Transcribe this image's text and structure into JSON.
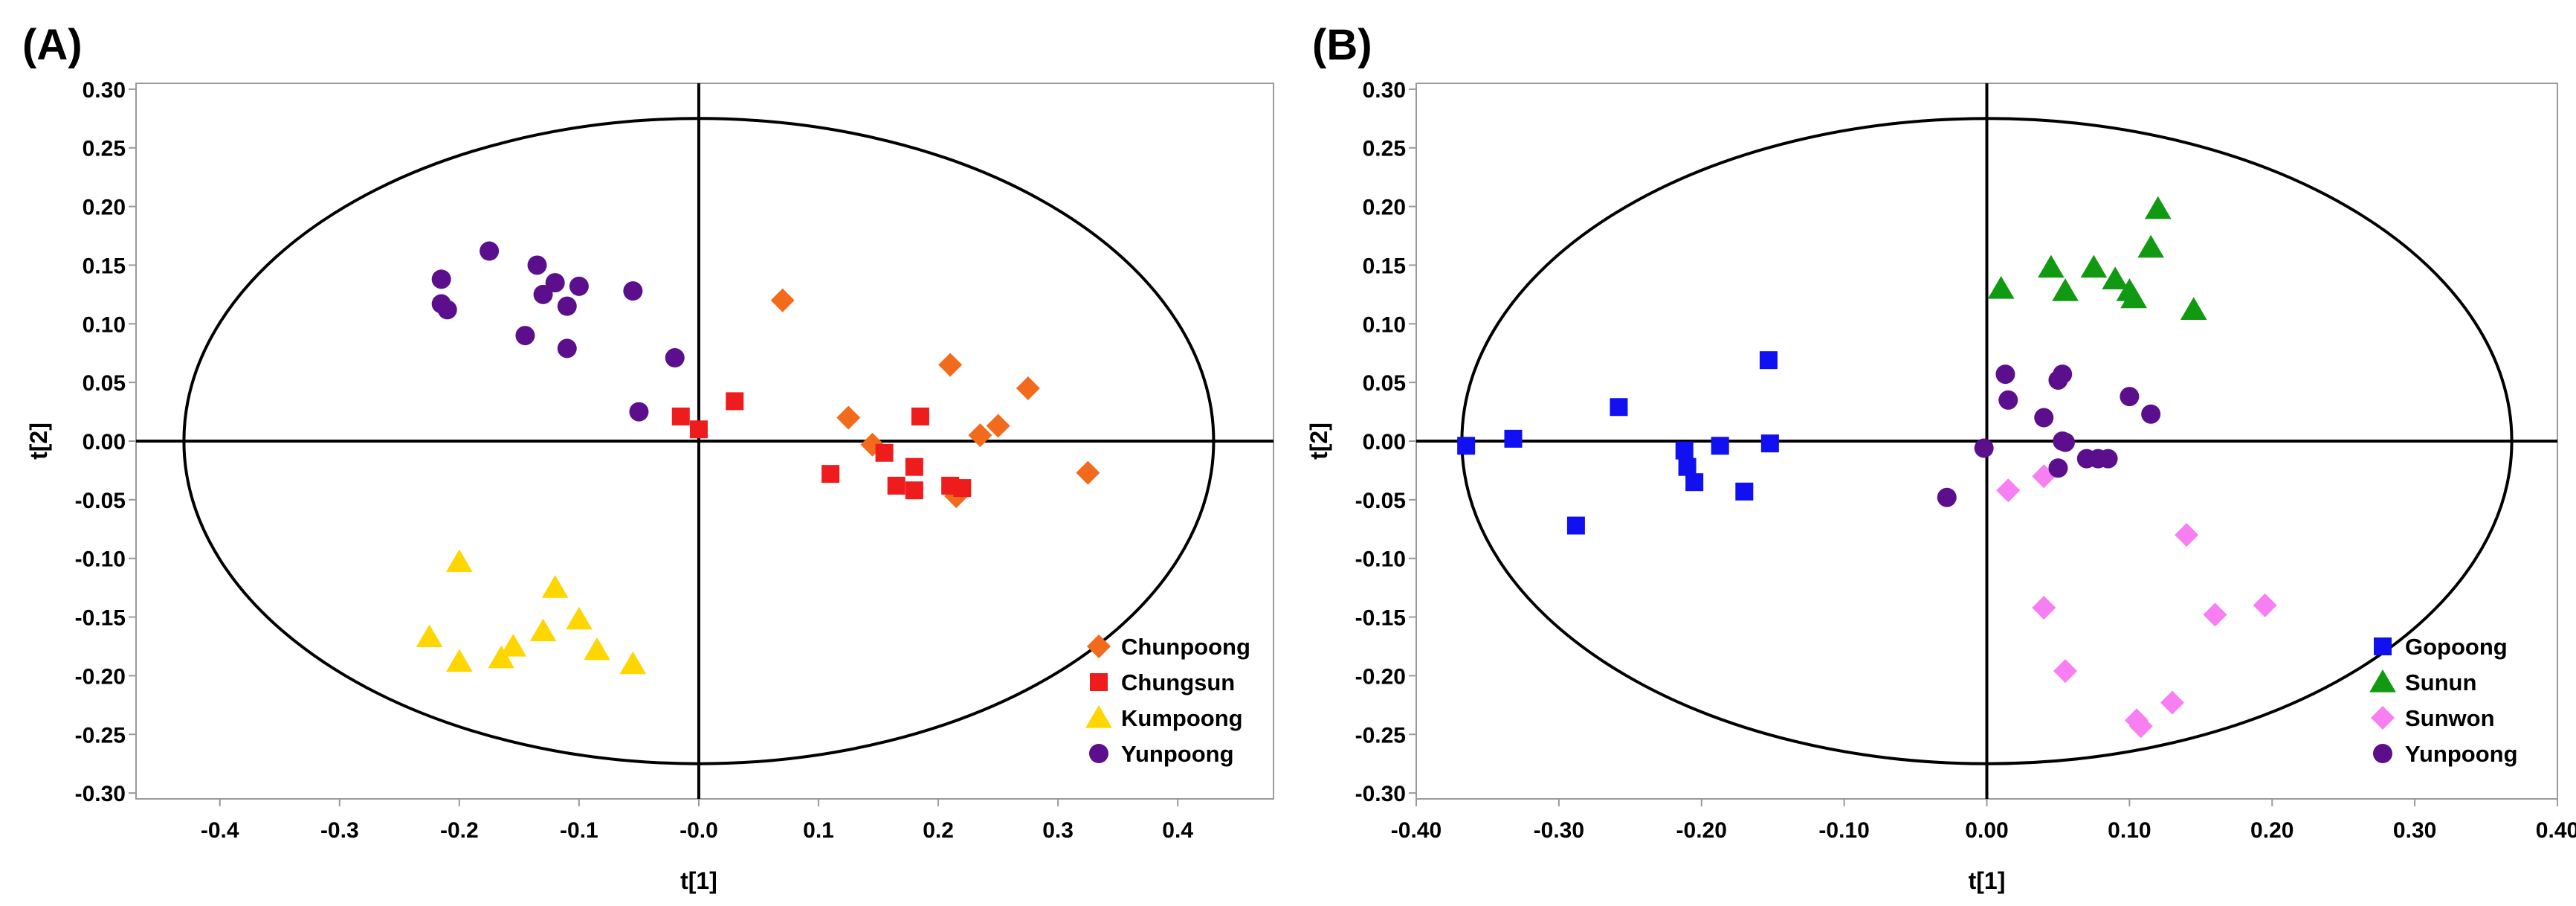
{
  "chart_data": [
    {
      "type": "scatter",
      "panel_label": "(A)",
      "xlabel": "t[1]",
      "ylabel": "t[2]",
      "xlim": [
        -0.47,
        0.48
      ],
      "ylim": [
        -0.305,
        0.305
      ],
      "x_ticks": [
        "-0.4",
        "-0.3",
        "-0.2",
        "-0.1",
        "-0.0",
        "0.1",
        "0.2",
        "0.3",
        "0.4"
      ],
      "x_tick_values": [
        -0.4,
        -0.3,
        -0.2,
        -0.1,
        0.0,
        0.1,
        0.2,
        0.3,
        0.4
      ],
      "y_ticks": [
        "0.30",
        "0.25",
        "0.20",
        "0.15",
        "0.10",
        "0.05",
        "0.00",
        "-0.05",
        "-0.10",
        "-0.15",
        "-0.20",
        "-0.25",
        "-0.30"
      ],
      "y_tick_values": [
        0.3,
        0.25,
        0.2,
        0.15,
        0.1,
        0.05,
        0.0,
        -0.05,
        -0.1,
        -0.15,
        -0.2,
        -0.25,
        -0.3
      ],
      "ellipse": {
        "cx": 0.0,
        "cy": 0.0,
        "rx": 0.43,
        "ry": 0.275
      },
      "legend_position": "bottom-right",
      "series": [
        {
          "name": "Chunpoong",
          "marker": "diamond",
          "color": "#F26B1D",
          "points": [
            [
              0.07,
              0.12
            ],
            [
              0.21,
              0.065
            ],
            [
              0.275,
              0.045
            ],
            [
              0.125,
              0.02
            ],
            [
              0.25,
              0.013
            ],
            [
              0.235,
              0.005
            ],
            [
              0.145,
              -0.003
            ],
            [
              0.325,
              -0.027
            ],
            [
              0.215,
              -0.047
            ]
          ]
        },
        {
          "name": "Chungsun",
          "marker": "square",
          "color": "#EE1C1C",
          "points": [
            [
              0.03,
              0.034
            ],
            [
              -0.015,
              0.021
            ],
            [
              0.0,
              0.01
            ],
            [
              0.185,
              0.021
            ],
            [
              0.155,
              -0.01
            ],
            [
              0.18,
              -0.022
            ],
            [
              0.11,
              -0.028
            ],
            [
              0.165,
              -0.038
            ],
            [
              0.18,
              -0.042
            ],
            [
              0.21,
              -0.038
            ],
            [
              0.22,
              -0.04
            ]
          ]
        },
        {
          "name": "Kumpoong",
          "marker": "triangle",
          "color": "#FFD600",
          "points": [
            [
              -0.2,
              -0.103
            ],
            [
              -0.12,
              -0.125
            ],
            [
              -0.1,
              -0.152
            ],
            [
              -0.13,
              -0.162
            ],
            [
              -0.225,
              -0.167
            ],
            [
              -0.155,
              -0.175
            ],
            [
              -0.085,
              -0.178
            ],
            [
              -0.165,
              -0.185
            ],
            [
              -0.2,
              -0.188
            ],
            [
              -0.055,
              -0.19
            ]
          ]
        },
        {
          "name": "Yunpoong",
          "marker": "circle",
          "color": "#5B0F8C",
          "points": [
            [
              -0.175,
              0.162
            ],
            [
              -0.135,
              0.15
            ],
            [
              -0.12,
              0.135
            ],
            [
              -0.215,
              0.138
            ],
            [
              -0.1,
              0.132
            ],
            [
              -0.13,
              0.125
            ],
            [
              -0.055,
              0.128
            ],
            [
              -0.11,
              0.115
            ],
            [
              -0.215,
              0.117
            ],
            [
              -0.21,
              0.112
            ],
            [
              -0.145,
              0.09
            ],
            [
              -0.11,
              0.079
            ],
            [
              -0.02,
              0.071
            ],
            [
              -0.05,
              0.025
            ]
          ]
        }
      ]
    },
    {
      "type": "scatter",
      "panel_label": "(B)",
      "xlabel": "t[1]",
      "ylabel": "t[2]",
      "xlim": [
        -0.4,
        0.4
      ],
      "ylim": [
        -0.305,
        0.305
      ],
      "x_ticks": [
        "-0.40",
        "-0.30",
        "-0.20",
        "-0.10",
        "0.00",
        "0.10",
        "0.20",
        "0.30",
        "0.40"
      ],
      "x_tick_values": [
        -0.4,
        -0.3,
        -0.2,
        -0.1,
        0.0,
        0.1,
        0.2,
        0.3,
        0.4
      ],
      "y_ticks": [
        "0.30",
        "0.25",
        "0.20",
        "0.15",
        "0.10",
        "0.05",
        "0.00",
        "-0.05",
        "-0.10",
        "-0.15",
        "-0.20",
        "-0.25",
        "-0.30"
      ],
      "y_tick_values": [
        0.3,
        0.25,
        0.2,
        0.15,
        0.1,
        0.05,
        0.0,
        -0.05,
        -0.1,
        -0.15,
        -0.2,
        -0.25,
        -0.3
      ],
      "ellipse": {
        "cx": 0.0,
        "cy": 0.0,
        "rx": 0.368,
        "ry": 0.275
      },
      "legend_position": "bottom-right",
      "series": [
        {
          "name": "Gopoong",
          "marker": "square",
          "color": "#1010F0",
          "points": [
            [
              -0.365,
              -0.004
            ],
            [
              -0.332,
              0.002
            ],
            [
              -0.288,
              -0.072
            ],
            [
              -0.258,
              0.029
            ],
            [
              -0.212,
              -0.008
            ],
            [
              -0.21,
              -0.022
            ],
            [
              -0.205,
              -0.035
            ],
            [
              -0.187,
              -0.004
            ],
            [
              -0.17,
              -0.043
            ],
            [
              -0.153,
              0.069
            ],
            [
              -0.152,
              -0.002
            ]
          ]
        },
        {
          "name": "Sunun",
          "marker": "triangle",
          "color": "#119A11",
          "points": [
            [
              0.12,
              0.198
            ],
            [
              0.115,
              0.165
            ],
            [
              0.045,
              0.148
            ],
            [
              0.075,
              0.148
            ],
            [
              0.09,
              0.138
            ],
            [
              0.1,
              0.128
            ],
            [
              0.01,
              0.13
            ],
            [
              0.055,
              0.128
            ],
            [
              0.103,
              0.122
            ],
            [
              0.145,
              0.112
            ]
          ]
        },
        {
          "name": "Sunwon",
          "marker": "diamond",
          "color": "#F77FF2",
          "points": [
            [
              0.04,
              -0.03
            ],
            [
              0.015,
              -0.042
            ],
            [
              0.14,
              -0.08
            ],
            [
              0.04,
              -0.142
            ],
            [
              0.195,
              -0.14
            ],
            [
              0.16,
              -0.148
            ],
            [
              0.055,
              -0.196
            ],
            [
              0.13,
              -0.223
            ],
            [
              0.105,
              -0.238
            ],
            [
              0.108,
              -0.243
            ]
          ]
        },
        {
          "name": "Yunpoong",
          "marker": "circle",
          "color": "#5B0F8C",
          "points": [
            [
              0.013,
              0.057
            ],
            [
              0.053,
              0.057
            ],
            [
              0.05,
              0.052
            ],
            [
              0.015,
              0.035
            ],
            [
              0.1,
              0.038
            ],
            [
              0.04,
              0.02
            ],
            [
              0.115,
              0.023
            ],
            [
              0.053,
              0.0
            ],
            [
              0.055,
              -0.001
            ],
            [
              -0.002,
              -0.006
            ],
            [
              0.07,
              -0.015
            ],
            [
              0.085,
              -0.015
            ],
            [
              0.078,
              -0.015
            ],
            [
              0.05,
              -0.023
            ],
            [
              -0.028,
              -0.048
            ]
          ]
        }
      ]
    }
  ]
}
